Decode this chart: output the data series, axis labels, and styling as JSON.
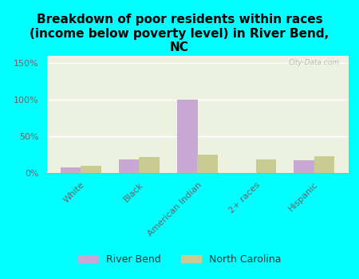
{
  "title": "Breakdown of poor residents within races\n(income below poverty level) in River Bend,\nNC",
  "categories": [
    "White",
    "Black",
    "American Indian",
    "2+ races",
    "Hispanic"
  ],
  "river_bend_values": [
    8,
    18,
    100,
    0,
    17
  ],
  "north_carolina_values": [
    10,
    22,
    25,
    18,
    23
  ],
  "river_bend_color": "#c9a8d4",
  "north_carolina_color": "#c8cc90",
  "background_color": "#00ffff",
  "plot_bg_color": "#edf2e0",
  "ylim": [
    0,
    160
  ],
  "yticks": [
    0,
    50,
    100,
    150
  ],
  "ytick_labels": [
    "0%",
    "50%",
    "100%",
    "150%"
  ],
  "bar_width": 0.35,
  "legend_labels": [
    "River Bend",
    "North Carolina"
  ],
  "watermark": "City-Data.com",
  "title_fontsize": 11,
  "tick_fontsize": 8,
  "legend_fontsize": 9
}
